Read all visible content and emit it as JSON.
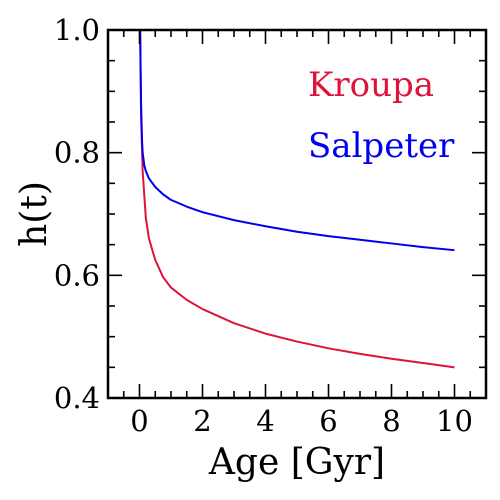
{
  "chart_data": {
    "type": "line",
    "title": "",
    "xlabel": "Age [Gyr]",
    "ylabel": "h(t)",
    "xlim": [
      -1,
      11
    ],
    "ylim": [
      0.4,
      1.0
    ],
    "x_ticks": [
      0,
      2,
      4,
      6,
      8,
      10
    ],
    "x_tick_labels": [
      "0",
      "2",
      "4",
      "6",
      "8",
      "10"
    ],
    "x_minor_step": 0.5,
    "y_ticks": [
      0.4,
      0.6,
      0.8,
      1.0
    ],
    "y_tick_labels": [
      "0.4",
      "0.6",
      "0.8",
      "1.0"
    ],
    "y_minor_step": 0.05,
    "grid": false,
    "legend_position": "top-right",
    "series": [
      {
        "name": "Kroupa",
        "color": "#dc143c",
        "x": [
          0.02,
          0.05,
          0.1,
          0.2,
          0.3,
          0.5,
          0.75,
          1.0,
          1.5,
          2.0,
          3.0,
          4.0,
          5.0,
          6.0,
          7.0,
          8.0,
          9.0,
          10.0
        ],
        "y": [
          1.0,
          0.86,
          0.77,
          0.694,
          0.66,
          0.625,
          0.597,
          0.58,
          0.56,
          0.545,
          0.522,
          0.505,
          0.492,
          0.481,
          0.472,
          0.464,
          0.457,
          0.45
        ]
      },
      {
        "name": "Salpeter",
        "color": "#0000ee",
        "x": [
          0.02,
          0.05,
          0.08,
          0.1,
          0.15,
          0.2,
          0.3,
          0.5,
          0.75,
          1.0,
          1.5,
          2.0,
          3.0,
          4.0,
          5.0,
          6.0,
          7.0,
          8.0,
          9.0,
          10.0
        ],
        "y": [
          1.0,
          0.88,
          0.82,
          0.8,
          0.78,
          0.77,
          0.758,
          0.744,
          0.732,
          0.723,
          0.712,
          0.703,
          0.69,
          0.68,
          0.671,
          0.664,
          0.658,
          0.652,
          0.646,
          0.641
        ]
      }
    ]
  }
}
